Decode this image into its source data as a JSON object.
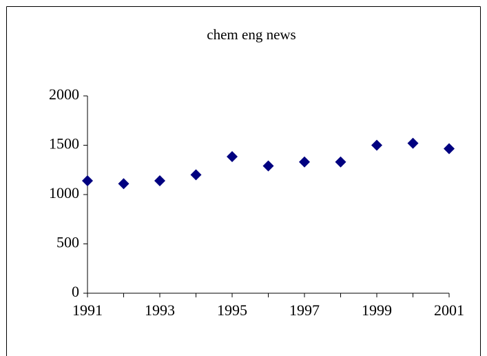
{
  "chart_data": {
    "type": "scatter",
    "title": "chem eng news",
    "x": [
      1991,
      1992,
      1993,
      1994,
      1995,
      1996,
      1997,
      1998,
      1999,
      2000,
      2001
    ],
    "series": [
      {
        "name": null,
        "color": "#000080",
        "values": [
          1140,
          1110,
          1140,
          1200,
          1385,
          1290,
          1330,
          1330,
          1500,
          1520,
          1465
        ]
      }
    ],
    "xlim": [
      1991,
      2001
    ],
    "xticks": [
      1991,
      1993,
      1995,
      1997,
      1999,
      2001
    ],
    "xminorticks": [
      1992,
      1994,
      1996,
      1998,
      2000
    ],
    "ylim": [
      0,
      2000
    ],
    "yticks": [
      0,
      500,
      1000,
      1500,
      2000
    ],
    "grid": false
  }
}
